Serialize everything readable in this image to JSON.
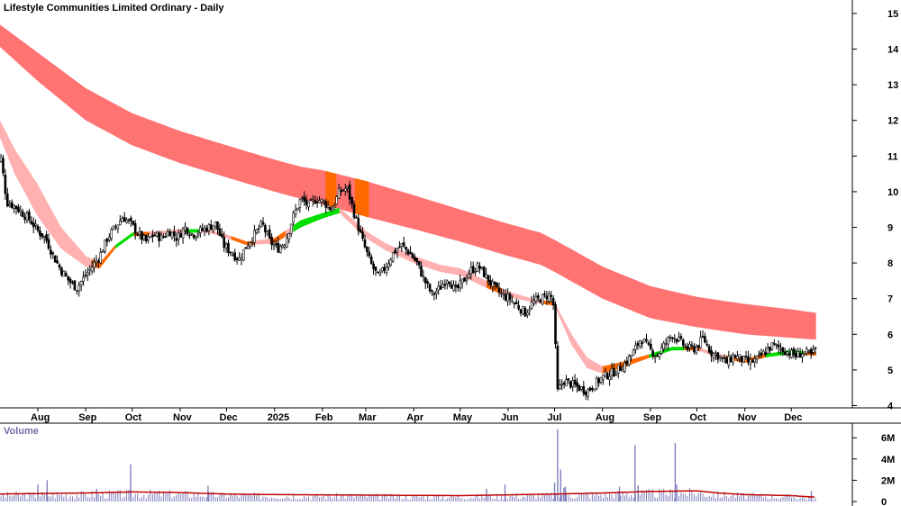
{
  "chart_data": {
    "type": "candlestick",
    "title": "Lifestyle Communities Limited Ordinary - Daily",
    "volume_title": "Volume",
    "price_axis": {
      "range": [
        3.8,
        15.3
      ],
      "ticks": [
        "15",
        "14",
        "13",
        "12",
        "11",
        "10",
        "9",
        "8",
        "7",
        "6",
        "5",
        "4"
      ],
      "position": "right"
    },
    "volume_axis": {
      "range": [
        0,
        7000000
      ],
      "ticks": [
        "6M",
        "4M",
        "2M",
        "0"
      ],
      "position": "right"
    },
    "x_axis": {
      "labels": [
        "Aug",
        "Sep",
        "Oct",
        "Nov",
        "Dec",
        "2025",
        "Feb",
        "Mar",
        "Apr",
        "May",
        "Jun",
        "Jul",
        "Aug",
        "Sep",
        "Oct",
        "Nov",
        "Dec"
      ],
      "label_positions_days": [
        0,
        31,
        61,
        92,
        122,
        153,
        184,
        212,
        243,
        273,
        304,
        334,
        365,
        396,
        426,
        457,
        487
      ]
    },
    "price_series": {
      "name": "Close",
      "approx_closes_by_day": [
        [
          -28,
          10.6
        ],
        [
          -24,
          11.0
        ],
        [
          -20,
          9.7
        ],
        [
          -15,
          9.6
        ],
        [
          -10,
          9.4
        ],
        [
          -5,
          9.2
        ],
        [
          0,
          8.9
        ],
        [
          5,
          8.7
        ],
        [
          10,
          8.2
        ],
        [
          15,
          7.8
        ],
        [
          20,
          7.5
        ],
        [
          25,
          7.3
        ],
        [
          30,
          7.6
        ],
        [
          35,
          7.9
        ],
        [
          40,
          8.2
        ],
        [
          45,
          8.7
        ],
        [
          50,
          9.0
        ],
        [
          55,
          9.3
        ],
        [
          60,
          9.1
        ],
        [
          65,
          8.8
        ],
        [
          70,
          8.6
        ],
        [
          75,
          8.8
        ],
        [
          80,
          8.7
        ],
        [
          85,
          8.9
        ],
        [
          90,
          8.7
        ],
        [
          95,
          9.0
        ],
        [
          100,
          8.8
        ],
        [
          105,
          8.9
        ],
        [
          110,
          9.0
        ],
        [
          115,
          9.1
        ],
        [
          120,
          8.5
        ],
        [
          125,
          8.3
        ],
        [
          130,
          8.1
        ],
        [
          135,
          8.5
        ],
        [
          140,
          8.8
        ],
        [
          145,
          9.1
        ],
        [
          150,
          8.6
        ],
        [
          155,
          8.4
        ],
        [
          160,
          8.6
        ],
        [
          165,
          9.3
        ],
        [
          170,
          9.8
        ],
        [
          175,
          9.6
        ],
        [
          180,
          9.8
        ],
        [
          185,
          9.7
        ],
        [
          190,
          9.5
        ],
        [
          195,
          10.0
        ],
        [
          200,
          10.1
        ],
        [
          205,
          9.3
        ],
        [
          210,
          8.6
        ],
        [
          215,
          8.0
        ],
        [
          220,
          7.6
        ],
        [
          225,
          7.9
        ],
        [
          230,
          8.3
        ],
        [
          235,
          8.5
        ],
        [
          240,
          8.3
        ],
        [
          245,
          8.0
        ],
        [
          250,
          7.5
        ],
        [
          255,
          7.1
        ],
        [
          260,
          7.3
        ],
        [
          265,
          7.6
        ],
        [
          270,
          7.2
        ],
        [
          275,
          7.5
        ],
        [
          280,
          7.8
        ],
        [
          285,
          7.9
        ],
        [
          290,
          7.6
        ],
        [
          295,
          7.3
        ],
        [
          300,
          7.1
        ],
        [
          305,
          7.0
        ],
        [
          310,
          6.8
        ],
        [
          315,
          6.6
        ],
        [
          320,
          6.9
        ],
        [
          325,
          7.0
        ],
        [
          330,
          7.1
        ],
        [
          333,
          7.0
        ],
        [
          336,
          4.4
        ],
        [
          340,
          4.7
        ],
        [
          345,
          4.6
        ],
        [
          350,
          4.5
        ],
        [
          355,
          4.4
        ],
        [
          360,
          4.6
        ],
        [
          365,
          4.8
        ],
        [
          370,
          4.9
        ],
        [
          375,
          5.0
        ],
        [
          380,
          5.2
        ],
        [
          385,
          5.5
        ],
        [
          390,
          5.9
        ],
        [
          395,
          5.6
        ],
        [
          400,
          5.4
        ],
        [
          405,
          5.7
        ],
        [
          410,
          6.0
        ],
        [
          415,
          5.8
        ],
        [
          420,
          5.6
        ],
        [
          425,
          5.6
        ],
        [
          430,
          5.9
        ],
        [
          435,
          5.5
        ],
        [
          440,
          5.4
        ],
        [
          445,
          5.2
        ],
        [
          450,
          5.4
        ],
        [
          455,
          5.3
        ],
        [
          460,
          5.2
        ],
        [
          465,
          5.3
        ],
        [
          470,
          5.5
        ],
        [
          475,
          5.7
        ],
        [
          480,
          5.6
        ],
        [
          485,
          5.5
        ],
        [
          490,
          5.4
        ],
        [
          495,
          5.5
        ],
        [
          500,
          5.4
        ],
        [
          503,
          5.6
        ]
      ]
    },
    "indicators": {
      "long_band": {
        "name": "Long-term moving average band",
        "color": "#ff7373",
        "upper_by_day": [
          [
            -28,
            14.8
          ],
          [
            0,
            13.9
          ],
          [
            31,
            12.9
          ],
          [
            61,
            12.2
          ],
          [
            92,
            11.7
          ],
          [
            122,
            11.3
          ],
          [
            153,
            10.9
          ],
          [
            170,
            10.7
          ],
          [
            184,
            10.6
          ],
          [
            212,
            10.3
          ],
          [
            243,
            9.9
          ],
          [
            273,
            9.5
          ],
          [
            304,
            9.1
          ],
          [
            325,
            8.85
          ],
          [
            334,
            8.65
          ],
          [
            365,
            7.9
          ],
          [
            396,
            7.35
          ],
          [
            426,
            7.05
          ],
          [
            457,
            6.85
          ],
          [
            487,
            6.7
          ],
          [
            503,
            6.6
          ]
        ],
        "lower_by_day": [
          [
            -28,
            14.2
          ],
          [
            0,
            13.1
          ],
          [
            31,
            12.0
          ],
          [
            61,
            11.3
          ],
          [
            92,
            10.8
          ],
          [
            122,
            10.4
          ],
          [
            153,
            10.0
          ],
          [
            170,
            9.8
          ],
          [
            184,
            9.65
          ],
          [
            212,
            9.3
          ],
          [
            243,
            8.95
          ],
          [
            273,
            8.6
          ],
          [
            304,
            8.2
          ],
          [
            325,
            7.95
          ],
          [
            334,
            7.75
          ],
          [
            365,
            7.0
          ],
          [
            396,
            6.45
          ],
          [
            426,
            6.2
          ],
          [
            457,
            6.0
          ],
          [
            487,
            5.9
          ],
          [
            503,
            5.85
          ]
        ]
      },
      "short_band": {
        "name": "Short-term moving average band",
        "color": "#ffb0b0",
        "bullish_color": "#00e000",
        "neutral_color": "#ff6a00",
        "upper_by_day": [
          [
            -28,
            12.3
          ],
          [
            -15,
            11.2
          ],
          [
            0,
            10.2
          ],
          [
            15,
            9.0
          ],
          [
            31,
            8.2
          ],
          [
            40,
            8.0
          ],
          [
            50,
            8.5
          ],
          [
            61,
            8.85
          ],
          [
            80,
            8.9
          ],
          [
            92,
            8.95
          ],
          [
            110,
            8.95
          ],
          [
            122,
            8.8
          ],
          [
            135,
            8.6
          ],
          [
            153,
            8.7
          ],
          [
            170,
            9.2
          ],
          [
            184,
            9.4
          ],
          [
            195,
            9.55
          ],
          [
            212,
            8.9
          ],
          [
            225,
            8.55
          ],
          [
            243,
            8.2
          ],
          [
            260,
            7.95
          ],
          [
            273,
            7.85
          ],
          [
            290,
            7.5
          ],
          [
            304,
            7.2
          ],
          [
            320,
            7.0
          ],
          [
            334,
            6.9
          ],
          [
            345,
            6.0
          ],
          [
            355,
            5.35
          ],
          [
            365,
            5.1
          ],
          [
            380,
            5.25
          ],
          [
            396,
            5.45
          ],
          [
            410,
            5.65
          ],
          [
            426,
            5.65
          ],
          [
            440,
            5.45
          ],
          [
            457,
            5.3
          ],
          [
            470,
            5.45
          ],
          [
            487,
            5.55
          ],
          [
            503,
            5.5
          ]
        ],
        "lower_by_day": [
          [
            -28,
            11.9
          ],
          [
            -15,
            10.5
          ],
          [
            0,
            9.3
          ],
          [
            15,
            8.4
          ],
          [
            31,
            7.9
          ],
          [
            40,
            7.85
          ],
          [
            50,
            8.4
          ],
          [
            61,
            8.75
          ],
          [
            80,
            8.8
          ],
          [
            92,
            8.85
          ],
          [
            110,
            8.85
          ],
          [
            122,
            8.7
          ],
          [
            135,
            8.5
          ],
          [
            153,
            8.55
          ],
          [
            170,
            9.0
          ],
          [
            184,
            9.25
          ],
          [
            195,
            9.4
          ],
          [
            212,
            8.7
          ],
          [
            225,
            8.35
          ],
          [
            243,
            8.0
          ],
          [
            260,
            7.75
          ],
          [
            273,
            7.65
          ],
          [
            290,
            7.3
          ],
          [
            304,
            7.05
          ],
          [
            320,
            6.9
          ],
          [
            334,
            6.8
          ],
          [
            345,
            5.7
          ],
          [
            355,
            5.05
          ],
          [
            365,
            4.9
          ],
          [
            380,
            5.1
          ],
          [
            396,
            5.35
          ],
          [
            410,
            5.55
          ],
          [
            426,
            5.55
          ],
          [
            440,
            5.35
          ],
          [
            457,
            5.2
          ],
          [
            470,
            5.35
          ],
          [
            487,
            5.45
          ],
          [
            503,
            5.4
          ]
        ]
      }
    },
    "volume_series": {
      "name": "Volume",
      "bar_color": "#8080c0",
      "average_color": "#c00000",
      "spikes": [
        [
          -28,
          3700000
        ],
        [
          0,
          1600000
        ],
        [
          6,
          2000000
        ],
        [
          38,
          1200000
        ],
        [
          60,
          3500000
        ],
        [
          110,
          1500000
        ],
        [
          290,
          1200000
        ],
        [
          302,
          1600000
        ],
        [
          334,
          1800000
        ],
        [
          336,
          6800000
        ],
        [
          338,
          3000000
        ],
        [
          340,
          1300000
        ],
        [
          341,
          1400000
        ],
        [
          376,
          1400000
        ],
        [
          386,
          5300000
        ],
        [
          388,
          1500000
        ],
        [
          412,
          5500000
        ],
        [
          413,
          1600000
        ],
        [
          500,
          1000000
        ]
      ],
      "average_by_day": [
        [
          -28,
          700000
        ],
        [
          30,
          800000
        ],
        [
          61,
          900000
        ],
        [
          90,
          850000
        ],
        [
          122,
          700000
        ],
        [
          153,
          650000
        ],
        [
          212,
          600000
        ],
        [
          273,
          550000
        ],
        [
          334,
          700000
        ],
        [
          365,
          800000
        ],
        [
          396,
          950000
        ],
        [
          426,
          1000000
        ],
        [
          440,
          800000
        ],
        [
          457,
          650000
        ],
        [
          487,
          550000
        ],
        [
          503,
          400000
        ]
      ]
    }
  }
}
